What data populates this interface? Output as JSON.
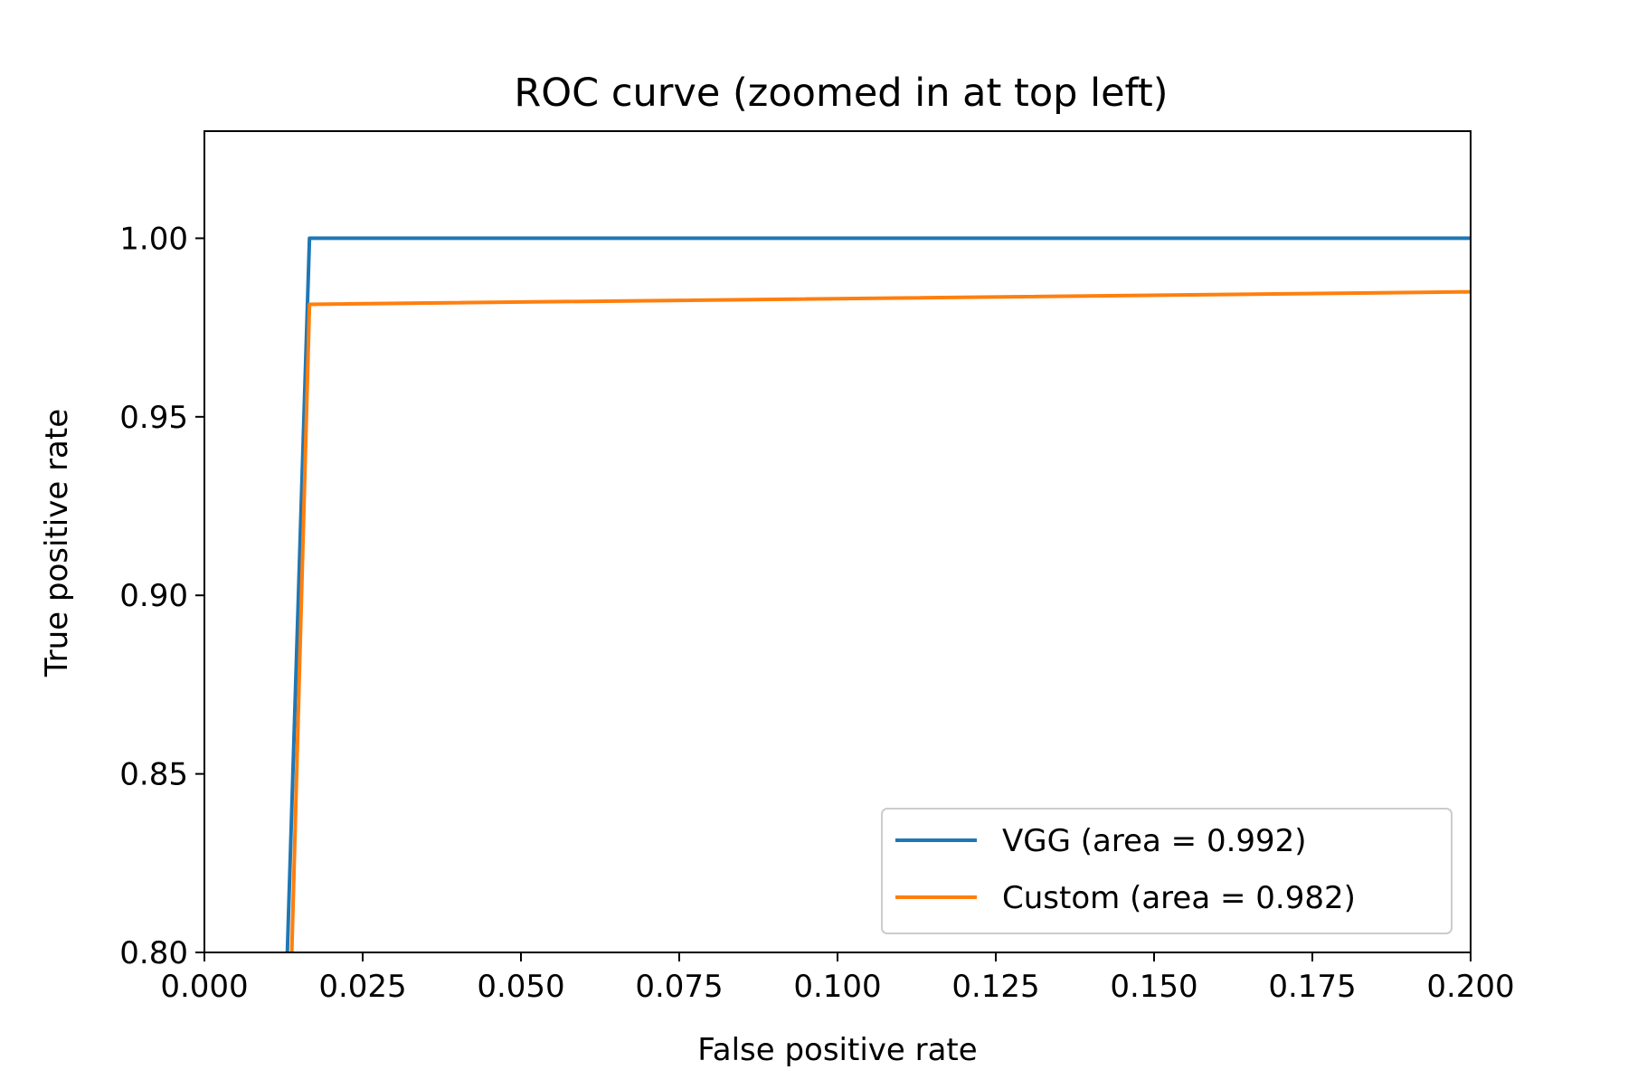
{
  "chart_data": {
    "type": "line",
    "title": "ROC curve (zoomed in at top left)",
    "xlabel": "False positive rate",
    "ylabel": "True positive rate",
    "xlim": [
      0.0,
      0.2
    ],
    "ylim": [
      0.8,
      1.03
    ],
    "x_ticks": [
      0.0,
      0.025,
      0.05,
      0.075,
      0.1,
      0.125,
      0.15,
      0.175,
      0.2
    ],
    "x_tick_labels": [
      "0.000",
      "0.025",
      "0.050",
      "0.075",
      "0.100",
      "0.125",
      "0.150",
      "0.175",
      "0.200"
    ],
    "y_ticks": [
      0.8,
      0.85,
      0.9,
      0.95,
      1.0
    ],
    "y_tick_labels": [
      "0.80",
      "0.85",
      "0.90",
      "0.95",
      "1.00"
    ],
    "grid": false,
    "legend_position": "lower-right",
    "series": [
      {
        "name": "VGG (area = 0.992)",
        "color": "#1f77b4",
        "x": [
          0.0131,
          0.0166,
          0.2
        ],
        "y": [
          0.8,
          1.0,
          1.0
        ]
      },
      {
        "name": "Custom (area = 0.982)",
        "color": "#ff7f0e",
        "x": [
          0.0138,
          0.0166,
          0.2
        ],
        "y": [
          0.8,
          0.9815,
          0.985
        ]
      }
    ]
  }
}
